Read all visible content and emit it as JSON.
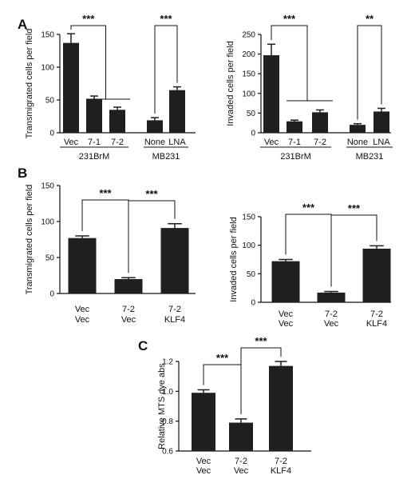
{
  "colors": {
    "bar": "#1f1f1f",
    "axis": "#111111",
    "background": "#ffffff"
  },
  "chart_data": [
    {
      "panel": "A",
      "type": "bar",
      "ylabel": "Transmigrated cells per field",
      "ylim": [
        0,
        150
      ],
      "yticks": [
        0,
        50,
        100,
        150
      ],
      "categories": [
        "Vec",
        "7-1",
        "7-2",
        "None",
        "LNA"
      ],
      "values": [
        137,
        51,
        35,
        19,
        65
      ],
      "errors": [
        14,
        5,
        4,
        4,
        5
      ],
      "groups": [
        {
          "label": "231BrM",
          "range": [
            0,
            2
          ]
        },
        {
          "label": "MB231",
          "range": [
            3,
            4
          ]
        }
      ],
      "significance": [
        {
          "from": 0,
          "to": [
            1,
            2
          ],
          "label": "***"
        },
        {
          "from": 3,
          "to": [
            4
          ],
          "label": "***"
        }
      ]
    },
    {
      "panel": "",
      "type": "bar",
      "ylabel": "Invaded cells per field",
      "ylim": [
        0,
        250
      ],
      "yticks": [
        0,
        50,
        100,
        150,
        200,
        250
      ],
      "categories": [
        "Vec",
        "7-1",
        "7-2",
        "None",
        "LNA"
      ],
      "values": [
        197,
        29,
        52,
        20,
        54
      ],
      "errors": [
        28,
        3,
        6,
        3,
        8
      ],
      "groups": [
        {
          "label": "231BrM",
          "range": [
            0,
            2
          ]
        },
        {
          "label": "MB231",
          "range": [
            3,
            4
          ]
        }
      ],
      "significance": [
        {
          "from": 0,
          "to": [
            1,
            2
          ],
          "label": "***"
        },
        {
          "from": 3,
          "to": [
            4
          ],
          "label": "**"
        }
      ]
    },
    {
      "panel": "B",
      "type": "bar",
      "ylabel": "Transmigrated cells per field",
      "ylim": [
        0,
        150
      ],
      "yticks": [
        0,
        50,
        100,
        150
      ],
      "categories": [
        [
          "Vec",
          "Vec"
        ],
        [
          "7-2",
          "Vec"
        ],
        [
          "7-2",
          "KLF4"
        ]
      ],
      "values": [
        77,
        20,
        91
      ],
      "errors": [
        3,
        2,
        6
      ],
      "significance": [
        {
          "pair": [
            0,
            1
          ],
          "label": "***"
        },
        {
          "pair": [
            1,
            2
          ],
          "label": "***"
        }
      ]
    },
    {
      "panel": "",
      "type": "bar",
      "ylabel": "Invaded cells per field",
      "ylim": [
        0,
        150
      ],
      "yticks": [
        0,
        50,
        100,
        150
      ],
      "categories": [
        [
          "Vec",
          "Vec"
        ],
        [
          "7-2",
          "Vec"
        ],
        [
          "7-2",
          "KLF4"
        ]
      ],
      "values": [
        72,
        17,
        94
      ],
      "errors": [
        3,
        2,
        5
      ],
      "significance": [
        {
          "pair": [
            0,
            1
          ],
          "label": "***"
        },
        {
          "pair": [
            1,
            2
          ],
          "label": "***"
        }
      ]
    },
    {
      "panel": "C",
      "type": "bar",
      "ylabel": "Relative MTS dye abs",
      "ylim": [
        0.6,
        1.2
      ],
      "yticks": [
        0.6,
        0.8,
        1.0,
        1.2
      ],
      "ytick_labels": [
        "0.6",
        "0.8",
        "1.0",
        "1.2"
      ],
      "categories": [
        [
          "Vec",
          "Vec"
        ],
        [
          "7-2",
          "Vec"
        ],
        [
          "7-2",
          "KLF4"
        ]
      ],
      "values": [
        0.99,
        0.79,
        1.17
      ],
      "errors": [
        0.02,
        0.025,
        0.03
      ],
      "significance": [
        {
          "pair": [
            0,
            1
          ],
          "label": "***"
        },
        {
          "pair": [
            1,
            2
          ],
          "label": "***"
        }
      ]
    }
  ]
}
